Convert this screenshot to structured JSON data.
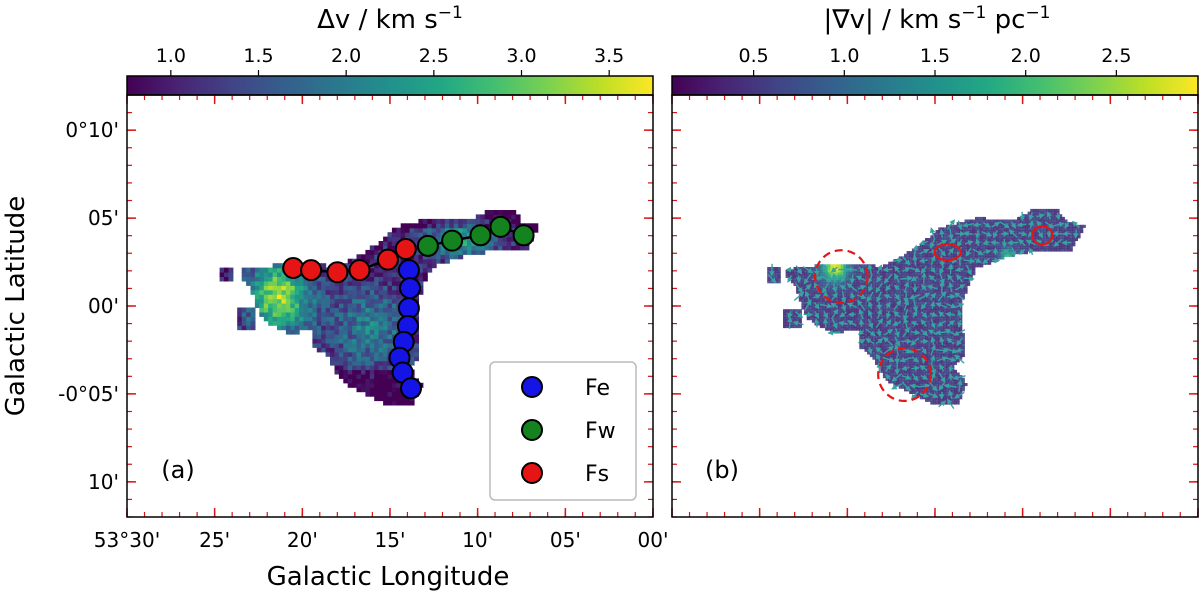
{
  "chart_data": [
    {
      "type": "heatmap",
      "panel_label": "(a)",
      "colorbar": {
        "label": "Δv / km s",
        "label_exponent": "−1",
        "range": [
          0.75,
          3.75
        ],
        "tick_values": [
          1.0,
          1.5,
          2.0,
          2.5,
          3.0,
          3.5
        ],
        "tick_labels": [
          "1.0",
          "1.5",
          "2.0",
          "2.5",
          "3.0",
          "3.5"
        ]
      },
      "xlabel": "Galactic Longitude",
      "ylabel": "Galactic Latitude",
      "xlim_deg": [
        53.5,
        53.0
      ],
      "ylim_deg": [
        -0.2,
        0.2
      ],
      "x_ticks_deg": [
        53.5,
        53.4167,
        53.3333,
        53.25,
        53.1667,
        53.0833,
        53.0
      ],
      "x_tick_labels": [
        "53°30'",
        "25'",
        "20'",
        "15'",
        "10'",
        "05'",
        "00'"
      ],
      "y_ticks_deg": [
        0.1667,
        0.0833,
        0.0,
        -0.0833,
        -0.1667
      ],
      "y_tick_labels": [
        "0°10'",
        "05'",
        "00'",
        "-0°05'",
        "10'"
      ],
      "series": [
        {
          "name": "Fe",
          "color": "#1414e6",
          "points": [
            [
              53.232,
              0.034
            ],
            [
              53.231,
              0.017
            ],
            [
              53.232,
              -0.002
            ],
            [
              53.233,
              -0.019
            ],
            [
              53.237,
              -0.034
            ],
            [
              53.241,
              -0.049
            ],
            [
              53.238,
              -0.063
            ],
            [
              53.23,
              -0.078
            ]
          ]
        },
        {
          "name": "Fw",
          "color": "#14821e",
          "points": [
            [
              53.214,
              0.057
            ],
            [
              53.191,
              0.062
            ],
            [
              53.164,
              0.067
            ],
            [
              53.145,
              0.075
            ],
            [
              53.123,
              0.067
            ]
          ]
        },
        {
          "name": "Fs",
          "color": "#e61414",
          "points": [
            [
              53.342,
              0.036
            ],
            [
              53.325,
              0.034
            ],
            [
              53.3,
              0.032
            ],
            [
              53.279,
              0.034
            ],
            [
              53.252,
              0.044
            ],
            [
              53.235,
              0.054
            ]
          ]
        }
      ],
      "legend": {
        "location": "bottom-right",
        "entries": [
          "Fe",
          "Fw",
          "Fs"
        ]
      }
    },
    {
      "type": "heatmap",
      "panel_label": "(b)",
      "colorbar": {
        "label": "|∇v| / km s",
        "label_exponent": "−1",
        "label_suffix": " pc",
        "label_suffix_exponent": "−1",
        "range": [
          0.05,
          2.95
        ],
        "tick_values": [
          0.5,
          1.0,
          1.5,
          2.0,
          2.5
        ],
        "tick_labels": [
          "0.5",
          "1.0",
          "1.5",
          "2.0",
          "2.5"
        ]
      },
      "overlay": "gradient vectors",
      "annotations": [
        {
          "shape": "dashed circle",
          "color": "#e61414",
          "at_deg": [
            53.339,
            0.028
          ],
          "radius_deg": 0.025
        },
        {
          "shape": "dashed circle",
          "color": "#e61414",
          "at_deg": [
            53.279,
            -0.065
          ],
          "radius_deg": 0.025
        },
        {
          "shape": "ellipse",
          "color": "#e61414",
          "at_deg": [
            53.238,
            0.051
          ]
        },
        {
          "shape": "ellipse",
          "color": "#e61414",
          "at_deg": [
            53.148,
            0.067
          ]
        }
      ]
    }
  ],
  "colormap": [
    "#440154",
    "#482475",
    "#414487",
    "#355f8d",
    "#2a788e",
    "#21918c",
    "#22a884",
    "#44bf70",
    "#7ad151",
    "#bddf26",
    "#fde725"
  ]
}
